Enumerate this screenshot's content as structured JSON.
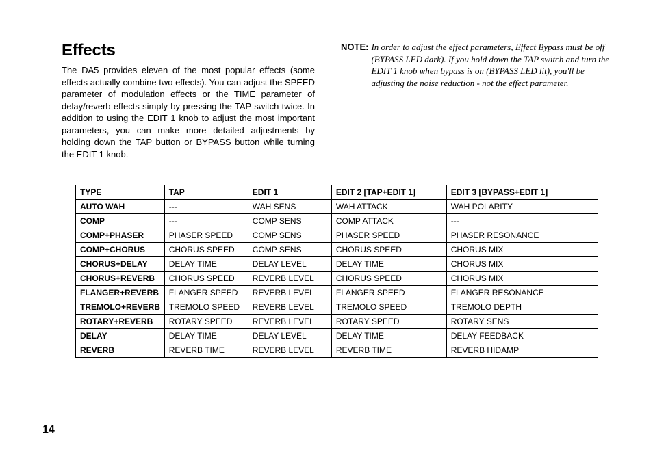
{
  "page_number": "14",
  "heading": "Effects",
  "body_paragraph": "The DA5 provides eleven of the most popular effects (some effects actually combine two effects). You can adjust the SPEED parameter of modulation effects or the TIME parameter of delay/reverb effects simply by pressing the TAP switch twice. In addition to using the EDIT 1 knob to adjust the most important parameters, you can make more detailed adjustments by holding down the TAP button or BYPASS button while turning the EDIT 1 knob.",
  "note": {
    "label": "NOTE:",
    "body": "In order to adjust the effect parameters, Effect Bypass must be off (BYPASS LED dark). If you hold down the TAP switch and turn the EDIT 1 knob when bypass is on (BYPASS LED lit), you'll be adjusting the noise reduction - not the effect parameter."
  },
  "effects_table": {
    "type": "table",
    "col_widths_pct": [
      17,
      16,
      16,
      22,
      29
    ],
    "header_fontsize_pt": 12,
    "cell_fontsize_pt": 12,
    "border_color": "#000000",
    "background_color": "#ffffff",
    "columns": [
      "TYPE",
      "TAP",
      "EDIT 1",
      "EDIT 2 [TAP+EDIT 1]",
      "EDIT 3 [BYPASS+EDIT 1]"
    ],
    "rows": [
      [
        "AUTO WAH",
        "---",
        "WAH SENS",
        "WAH ATTACK",
        "WAH POLARITY"
      ],
      [
        "COMP",
        "---",
        "COMP SENS",
        "COMP ATTACK",
        "---"
      ],
      [
        "COMP+PHASER",
        "PHASER SPEED",
        "COMP SENS",
        "PHASER SPEED",
        "PHASER RESONANCE"
      ],
      [
        "COMP+CHORUS",
        "CHORUS SPEED",
        "COMP SENS",
        "CHORUS SPEED",
        "CHORUS MIX"
      ],
      [
        "CHORUS+DELAY",
        "DELAY TIME",
        "DELAY LEVEL",
        "DELAY TIME",
        "CHORUS MIX"
      ],
      [
        "CHORUS+REVERB",
        "CHORUS SPEED",
        "REVERB LEVEL",
        "CHORUS SPEED",
        "CHORUS MIX"
      ],
      [
        "FLANGER+REVERB",
        "FLANGER SPEED",
        "REVERB LEVEL",
        "FLANGER SPEED",
        "FLANGER RESONANCE"
      ],
      [
        "TREMOLO+REVERB",
        "TREMOLO SPEED",
        "REVERB LEVEL",
        "TREMOLO SPEED",
        "TREMOLO DEPTH"
      ],
      [
        "ROTARY+REVERB",
        "ROTARY SPEED",
        "REVERB LEVEL",
        "ROTARY SPEED",
        "ROTARY SENS"
      ],
      [
        "DELAY",
        "DELAY TIME",
        "DELAY LEVEL",
        "DELAY TIME",
        "DELAY FEEDBACK"
      ],
      [
        "REVERB",
        "REVERB TIME",
        "REVERB LEVEL",
        "REVERB TIME",
        "REVERB HIDAMP"
      ]
    ]
  }
}
